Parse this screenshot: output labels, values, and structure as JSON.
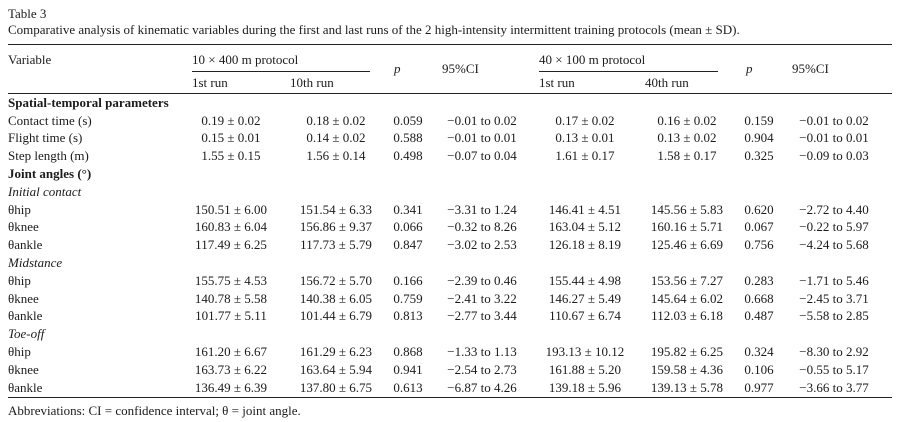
{
  "page": {
    "background": "#ffffff",
    "text_color": "#1b1b1b",
    "rule_color": "#222222"
  },
  "table": {
    "title": "Table 3",
    "caption": "Comparative analysis of kinematic variables during the first and last runs of the 2 high-intensity intermittent training protocols (mean ± SD).",
    "header": {
      "variable": "Variable",
      "group1_label": "10 × 400 m protocol",
      "group1_runs": [
        "1st run",
        "10th run"
      ],
      "group2_label": "40 × 100 m protocol",
      "group2_runs": [
        "1st run",
        "40th run"
      ],
      "p": "p",
      "ci": "95%CI"
    },
    "rows": [
      {
        "type": "section",
        "style": "bold",
        "label": "Spatial-temporal parameters"
      },
      {
        "type": "data",
        "label": "Contact time (s)",
        "values": [
          "0.19 ± 0.02",
          "0.18 ± 0.02",
          "0.059",
          "−0.01 to 0.02",
          "0.17 ± 0.02",
          "0.16 ± 0.02",
          "0.159",
          "−0.01 to 0.02"
        ]
      },
      {
        "type": "data",
        "label": "Flight time (s)",
        "values": [
          "0.15 ± 0.01",
          "0.14 ± 0.02",
          "0.588",
          "−0.01 to 0.01",
          "0.13 ± 0.01",
          "0.13 ± 0.02",
          "0.904",
          "−0.01 to 0.01"
        ]
      },
      {
        "type": "data",
        "label": "Step length (m)",
        "values": [
          "1.55 ± 0.15",
          "1.56 ± 0.14",
          "0.498",
          "−0.07 to 0.04",
          "1.61 ± 0.17",
          "1.58 ± 0.17",
          "0.325",
          "−0.09 to 0.03"
        ]
      },
      {
        "type": "section",
        "style": "bold",
        "label": "Joint angles (°)"
      },
      {
        "type": "section",
        "style": "italic",
        "label": "Initial contact"
      },
      {
        "type": "data",
        "label": "θhip",
        "values": [
          "150.51 ± 6.00",
          "151.54 ± 6.33",
          "0.341",
          "−3.31 to 1.24",
          "146.41 ± 4.51",
          "145.56 ± 5.83",
          "0.620",
          "−2.72 to 4.40"
        ]
      },
      {
        "type": "data",
        "label": "θknee",
        "values": [
          "160.83 ± 6.04",
          "156.86 ± 9.37",
          "0.066",
          "−0.32 to 8.26",
          "163.04 ± 5.12",
          "160.16 ± 5.71",
          "0.067",
          "−0.22 to 5.97"
        ]
      },
      {
        "type": "data",
        "label": "θankle",
        "values": [
          "117.49 ± 6.25",
          "117.73 ± 5.79",
          "0.847",
          "−3.02 to 2.53",
          "126.18 ± 8.19",
          "125.46 ± 6.69",
          "0.756",
          "−4.24 to 5.68"
        ]
      },
      {
        "type": "section",
        "style": "italic",
        "label": "Midstance"
      },
      {
        "type": "data",
        "label": "θhip",
        "values": [
          "155.75 ± 4.53",
          "156.72 ± 5.70",
          "0.166",
          "−2.39 to 0.46",
          "155.44 ± 4.98",
          "153.56 ± 7.27",
          "0.283",
          "−1.71 to 5.46"
        ]
      },
      {
        "type": "data",
        "label": "θknee",
        "values": [
          "140.78 ± 5.58",
          "140.38 ± 6.05",
          "0.759",
          "−2.41 to 3.22",
          "146.27 ± 5.49",
          "145.64 ± 6.02",
          "0.668",
          "−2.45 to 3.71"
        ]
      },
      {
        "type": "data",
        "label": "θankle",
        "values": [
          "101.77 ± 5.11",
          "101.44 ± 6.79",
          "0.813",
          "−2.77 to 3.44",
          "110.67 ± 6.74",
          "112.03 ± 6.18",
          "0.487",
          "−5.58 to 2.85"
        ]
      },
      {
        "type": "section",
        "style": "italic",
        "label": "Toe-off"
      },
      {
        "type": "data",
        "label": "θhip",
        "values": [
          "161.20 ± 6.67",
          "161.29 ± 6.23",
          "0.868",
          "−1.33 to 1.13",
          "193.13 ± 10.12",
          "195.82 ± 6.25",
          "0.324",
          "−8.30 to 2.92"
        ]
      },
      {
        "type": "data",
        "label": "θknee",
        "values": [
          "163.73 ± 6.22",
          "163.64 ± 5.94",
          "0.941",
          "−2.54 to 2.73",
          "161.88 ± 5.20",
          "159.58 ± 4.36",
          "0.106",
          "−0.55 to 5.17"
        ]
      },
      {
        "type": "data",
        "label": "θankle",
        "values": [
          "136.49 ± 6.39",
          "137.80 ± 6.75",
          "0.613",
          "−6.87 to 4.26",
          "139.18 ± 5.96",
          "139.13 ± 5.78",
          "0.977",
          "−3.66 to 3.77"
        ]
      }
    ],
    "footnote": "Abbreviations: CI = confidence interval; θ = joint angle."
  }
}
